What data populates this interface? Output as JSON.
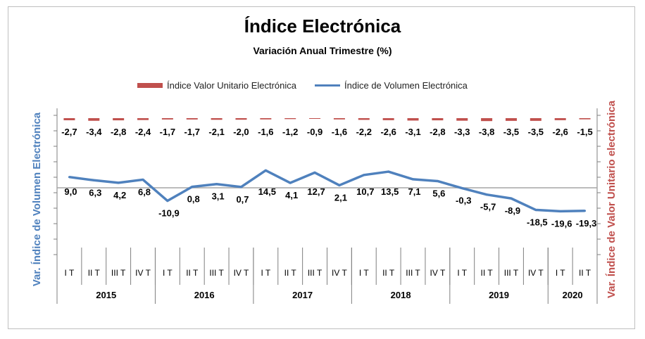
{
  "chart_data": {
    "type": "line",
    "title": "Índice Electrónica",
    "subtitle": "Variación Anual Trimestre  (%)",
    "ylabel_left": "Var. Índice de Volumen Electrónica",
    "ylabel_right": "Var. Índice de Valor Unitario electrónica",
    "legend_position": "top",
    "categories": [
      "I T",
      "II T",
      "III T",
      "IV T",
      "I T",
      "II T",
      "III T",
      "IV T",
      "I T",
      "II T",
      "III T",
      "IV T",
      "I T",
      "II T",
      "III T",
      "IV T",
      "I T",
      "II T",
      "III T",
      "IV T",
      "I T",
      "II T"
    ],
    "years": [
      {
        "label": "2015",
        "quarters": 4
      },
      {
        "label": "2016",
        "quarters": 4
      },
      {
        "label": "2017",
        "quarters": 4
      },
      {
        "label": "2018",
        "quarters": 4
      },
      {
        "label": "2019",
        "quarters": 4
      },
      {
        "label": "2020",
        "quarters": 2
      }
    ],
    "series": [
      {
        "name": "Índice Valor Unitario Electrónica",
        "kind": "bar",
        "axis": "right",
        "color": "#c0504d",
        "values": [
          -2.7,
          -3.4,
          -2.8,
          -2.4,
          -1.7,
          -1.7,
          -2.1,
          -2.0,
          -1.6,
          -1.2,
          -0.9,
          -1.6,
          -2.2,
          -2.6,
          -3.1,
          -2.8,
          -3.3,
          -3.8,
          -3.5,
          -3.5,
          -2.6,
          -1.5
        ],
        "labels": [
          "-2,7",
          "-3,4",
          "-2,8",
          "-2,4",
          "-1,7",
          "-1,7",
          "-2,1",
          "-2,0",
          "-1,6",
          "-1,2",
          "-0,9",
          "-1,6",
          "-2,2",
          "-2,6",
          "-3,1",
          "-2,8",
          "-3,3",
          "-3,8",
          "-3,5",
          "-3,5",
          "-2,6",
          "-1,5"
        ]
      },
      {
        "name": "Índice de Volumen Electrónica",
        "kind": "line",
        "axis": "left",
        "color": "#4f81bd",
        "values": [
          9.0,
          6.3,
          4.2,
          6.8,
          -10.9,
          0.8,
          3.1,
          0.7,
          14.5,
          4.1,
          12.7,
          2.1,
          10.7,
          13.5,
          7.1,
          5.6,
          -0.3,
          -5.7,
          -8.9,
          -18.5,
          -19.6,
          -19.3
        ],
        "labels": [
          "9,0",
          "6,3",
          "4,2",
          "6,8",
          "-10,9",
          "0,8",
          "3,1",
          "0,7",
          "14,5",
          "4,1",
          "12,7",
          "2,1",
          "10,7",
          "13,5",
          "7,1",
          "5,6",
          "-0,3",
          "-5,7",
          "-8,9",
          "-18,5",
          "-19,6",
          "-19,3"
        ]
      }
    ],
    "grid": false
  }
}
